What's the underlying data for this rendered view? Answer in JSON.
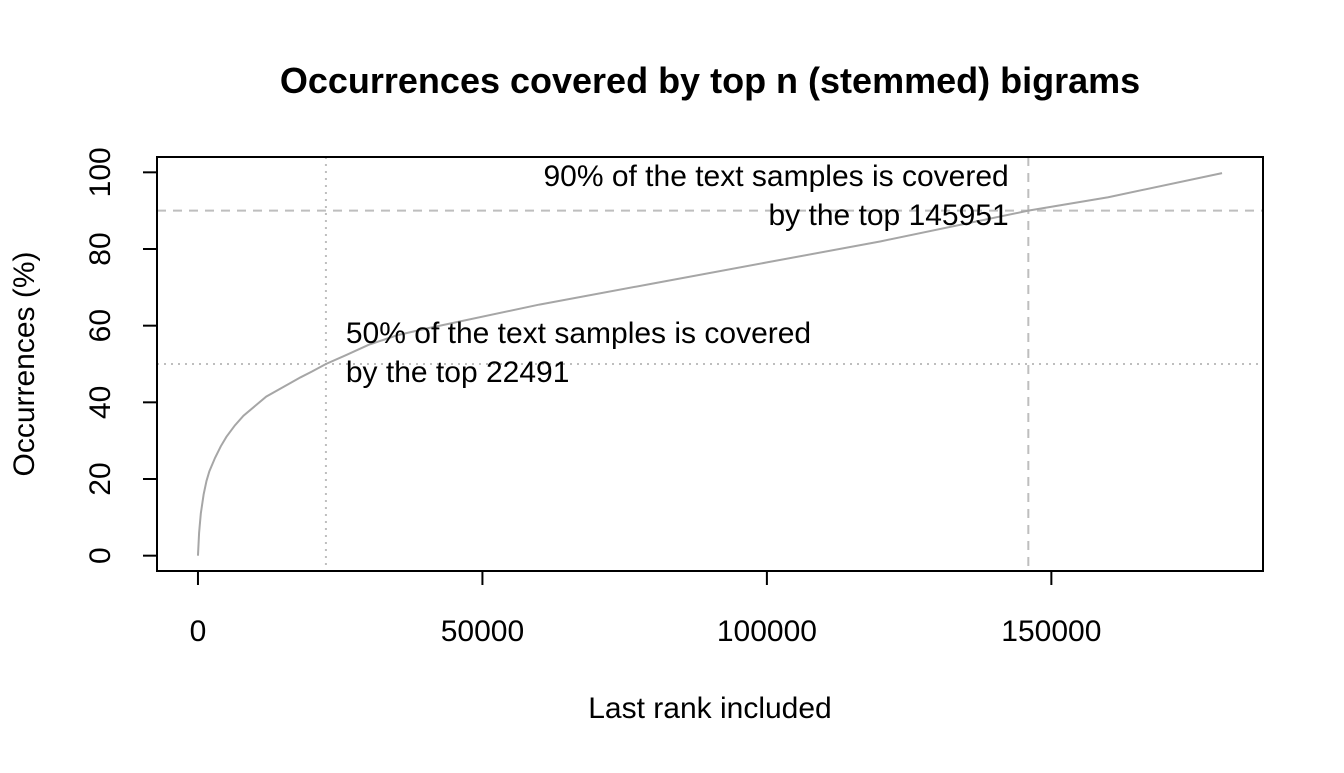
{
  "chart_data": {
    "type": "line",
    "title": "Occurrences covered by top n (stemmed) bigrams",
    "xlabel": "Last rank included",
    "ylabel": "Occurrences (%)",
    "xlim": [
      -7200,
      187200
    ],
    "ylim": [
      -4,
      104
    ],
    "x_ticks": [
      0,
      50000,
      100000,
      150000
    ],
    "x_tick_labels": [
      "0",
      "50000",
      "100000",
      "150000"
    ],
    "y_ticks": [
      0,
      20,
      40,
      60,
      80,
      100
    ],
    "y_tick_labels": [
      "0",
      "20",
      "40",
      "60",
      "80",
      "100"
    ],
    "grid": false,
    "series": [
      {
        "color": "#a6a6a6",
        "x": [
          0,
          200,
          500,
          1000,
          1500,
          2000,
          3000,
          4000,
          5000,
          6500,
          8000,
          10000,
          12000,
          15000,
          18000,
          20000,
          22491,
          26000,
          30000,
          35000,
          40000,
          60000,
          80000,
          100000,
          120000,
          145951,
          160000,
          180000
        ],
        "y": [
          0,
          6,
          11,
          16,
          19.5,
          22,
          25.5,
          28.5,
          31,
          34,
          36.5,
          39,
          41.5,
          44,
          46.5,
          48,
          50,
          52.3,
          55,
          57.5,
          59.2,
          65.5,
          71,
          76.5,
          82,
          90,
          93.5,
          99.8
        ]
      }
    ],
    "reference_lines": [
      {
        "orientation": "vertical",
        "value": 22491,
        "style": "dotted",
        "color": "#bebebe"
      },
      {
        "orientation": "horizontal",
        "value": 50,
        "style": "dotted",
        "color": "#bebebe"
      },
      {
        "orientation": "vertical",
        "value": 145951,
        "style": "dashed",
        "color": "#bebebe"
      },
      {
        "orientation": "horizontal",
        "value": 90,
        "style": "dashed",
        "color": "#bebebe"
      }
    ],
    "annotations": [
      {
        "id": "annotation-50",
        "align": "left",
        "anchor_x": 26000,
        "anchor_y": 55.5,
        "lines": [
          "50% of the text samples is covered",
          "by the top 22491"
        ]
      },
      {
        "id": "annotation-90",
        "align": "right",
        "anchor_x": 142500,
        "anchor_y": 96.5,
        "lines": [
          "90% of the text samples is covered",
          "by the top 145951"
        ]
      }
    ]
  }
}
